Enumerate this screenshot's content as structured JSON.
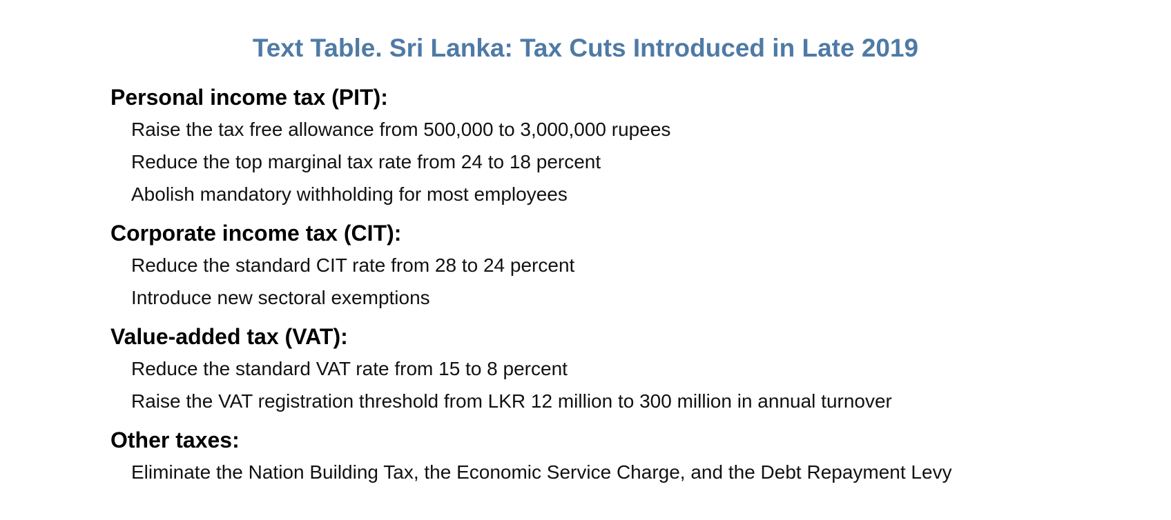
{
  "title": "Text Table. Sri Lanka: Tax Cuts Introduced in Late 2019",
  "sections": [
    {
      "heading": "Personal income tax (PIT):",
      "items": [
        "Raise the tax free allowance from 500,000 to 3,000,000 rupees",
        "Reduce the top marginal tax rate from 24 to 18 percent",
        "Abolish mandatory withholding for most employees"
      ]
    },
    {
      "heading": "Corporate income tax (CIT):",
      "items": [
        "Reduce the standard CIT rate from 28 to 24 percent",
        "Introduce new sectoral exemptions"
      ]
    },
    {
      "heading": "Value-added tax (VAT):",
      "items": [
        "Reduce the standard VAT rate from 15 to 8 percent",
        "Raise the VAT registration threshold from LKR 12 million to 300 million in annual turnover"
      ]
    },
    {
      "heading": "Other taxes:",
      "items": [
        "Eliminate the Nation Building Tax, the Economic Service Charge, and the Debt Repayment Levy"
      ]
    }
  ],
  "colors": {
    "title": "#4f7aa6",
    "heading": "#000000",
    "body": "#111111"
  }
}
